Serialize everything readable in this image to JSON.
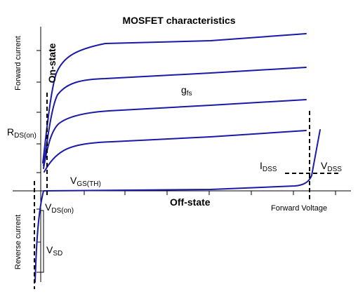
{
  "diagram": {
    "title": "MOSFET characteristics",
    "axis_labels": {
      "y_positive": "Forward current",
      "y_negative": "Reverse current",
      "x_positive": "Forward Voltage"
    },
    "region_labels": {
      "on_state": "On-state",
      "off_state": "Off-state"
    },
    "parameters": {
      "gfs": {
        "main": "g",
        "sub": "fs"
      },
      "rds_on": {
        "main": "R",
        "sub": "DS(on)"
      },
      "vgs_th": {
        "main": "V",
        "sub": "GS(TH)"
      },
      "vds_on": {
        "main": "V",
        "sub": "DS(on)"
      },
      "vsd": {
        "main": "V",
        "sub": "SD"
      },
      "idss": {
        "main": "I",
        "sub": "DSS"
      },
      "vdss": {
        "main": "V",
        "sub": "DSS"
      }
    },
    "colors": {
      "curve": "#1a1aa6",
      "axis": "#000000",
      "dash": "#000000"
    }
  }
}
